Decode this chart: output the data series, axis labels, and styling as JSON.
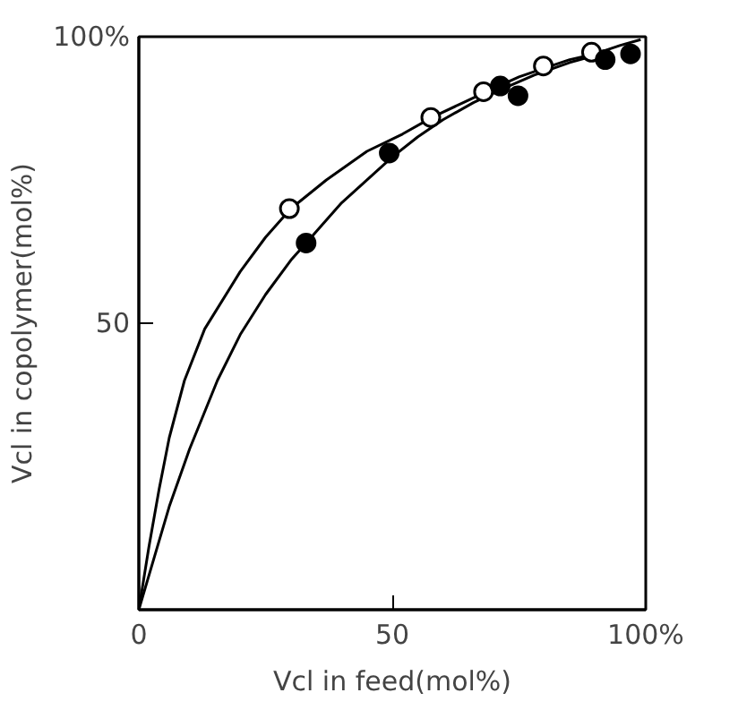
{
  "chart_data": {
    "type": "scatter",
    "xlabel": "Vcl in feed(mol%)",
    "ylabel": "Vcl in copolymer(mol%)",
    "xlim": [
      0,
      100
    ],
    "ylim": [
      0,
      100
    ],
    "xticks": [
      0,
      50,
      {
        "value": 100,
        "label": "100%"
      }
    ],
    "yticks": [
      {
        "value": 0,
        "label": null
      },
      50,
      {
        "value": 100,
        "label": "100%"
      }
    ],
    "grid": false,
    "series": [
      {
        "type": "line",
        "color": "#000000",
        "line_style": "solid",
        "x": [
          0,
          2,
          4,
          6,
          9,
          13,
          20,
          25,
          30,
          37,
          45,
          52,
          58,
          64,
          70,
          75,
          80,
          85,
          90,
          95,
          99
        ],
        "values": [
          0,
          11,
          21,
          30,
          40,
          49,
          59,
          65,
          70,
          75,
          80,
          83,
          86,
          88.5,
          91,
          93,
          94.5,
          96,
          97,
          98.5,
          99.5
        ]
      },
      {
        "type": "line",
        "color": "#000000",
        "line_style": "solid",
        "x": [
          0,
          3,
          6,
          10,
          15.5,
          20,
          25,
          30,
          33,
          40,
          50,
          55,
          60,
          66,
          72,
          78,
          85,
          92
        ],
        "values": [
          0,
          9,
          18,
          28,
          40,
          48,
          55,
          61,
          64,
          71,
          79,
          82.5,
          85.5,
          88.5,
          91,
          93.3,
          95.5,
          97.2
        ]
      },
      {
        "color": "#ffffff",
        "marker": "circle",
        "x": [
          29.7,
          57.6,
          68,
          79.8,
          89.3
        ],
        "values": [
          70,
          85.9,
          90.4,
          94.9,
          97.3
        ]
      },
      {
        "color": "#000000",
        "marker": "circle",
        "x": [
          33,
          49.4,
          71.3,
          74.8,
          92,
          97
        ],
        "values": [
          64,
          79.7,
          91.4,
          89.7,
          96,
          97
        ]
      }
    ]
  }
}
